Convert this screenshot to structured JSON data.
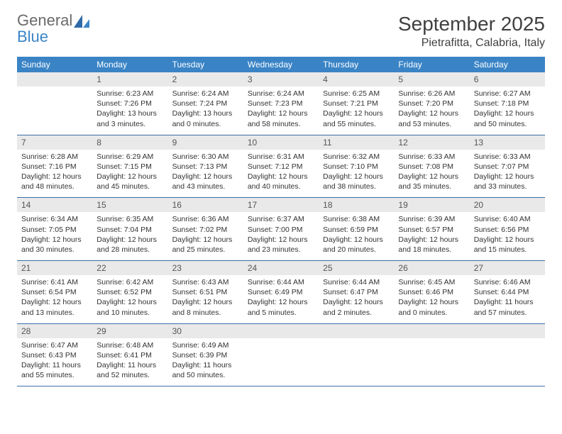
{
  "logo": {
    "line1": "General",
    "line2": "Blue"
  },
  "title": "September 2025",
  "location": "Pietrafitta, Calabria, Italy",
  "colors": {
    "header_bg": "#3a84c6",
    "daynum_bg": "#e9e9e9",
    "week_border": "#3a6fa6",
    "text_dark": "#404040",
    "logo_gray": "#6a6a6a",
    "logo_blue": "#3a84c6"
  },
  "dow": [
    "Sunday",
    "Monday",
    "Tuesday",
    "Wednesday",
    "Thursday",
    "Friday",
    "Saturday"
  ],
  "weeks": [
    [
      {
        "n": "",
        "sr": "",
        "ss": "",
        "dl": ""
      },
      {
        "n": "1",
        "sr": "Sunrise: 6:23 AM",
        "ss": "Sunset: 7:26 PM",
        "dl": "Daylight: 13 hours and 3 minutes."
      },
      {
        "n": "2",
        "sr": "Sunrise: 6:24 AM",
        "ss": "Sunset: 7:24 PM",
        "dl": "Daylight: 13 hours and 0 minutes."
      },
      {
        "n": "3",
        "sr": "Sunrise: 6:24 AM",
        "ss": "Sunset: 7:23 PM",
        "dl": "Daylight: 12 hours and 58 minutes."
      },
      {
        "n": "4",
        "sr": "Sunrise: 6:25 AM",
        "ss": "Sunset: 7:21 PM",
        "dl": "Daylight: 12 hours and 55 minutes."
      },
      {
        "n": "5",
        "sr": "Sunrise: 6:26 AM",
        "ss": "Sunset: 7:20 PM",
        "dl": "Daylight: 12 hours and 53 minutes."
      },
      {
        "n": "6",
        "sr": "Sunrise: 6:27 AM",
        "ss": "Sunset: 7:18 PM",
        "dl": "Daylight: 12 hours and 50 minutes."
      }
    ],
    [
      {
        "n": "7",
        "sr": "Sunrise: 6:28 AM",
        "ss": "Sunset: 7:16 PM",
        "dl": "Daylight: 12 hours and 48 minutes."
      },
      {
        "n": "8",
        "sr": "Sunrise: 6:29 AM",
        "ss": "Sunset: 7:15 PM",
        "dl": "Daylight: 12 hours and 45 minutes."
      },
      {
        "n": "9",
        "sr": "Sunrise: 6:30 AM",
        "ss": "Sunset: 7:13 PM",
        "dl": "Daylight: 12 hours and 43 minutes."
      },
      {
        "n": "10",
        "sr": "Sunrise: 6:31 AM",
        "ss": "Sunset: 7:12 PM",
        "dl": "Daylight: 12 hours and 40 minutes."
      },
      {
        "n": "11",
        "sr": "Sunrise: 6:32 AM",
        "ss": "Sunset: 7:10 PM",
        "dl": "Daylight: 12 hours and 38 minutes."
      },
      {
        "n": "12",
        "sr": "Sunrise: 6:33 AM",
        "ss": "Sunset: 7:08 PM",
        "dl": "Daylight: 12 hours and 35 minutes."
      },
      {
        "n": "13",
        "sr": "Sunrise: 6:33 AM",
        "ss": "Sunset: 7:07 PM",
        "dl": "Daylight: 12 hours and 33 minutes."
      }
    ],
    [
      {
        "n": "14",
        "sr": "Sunrise: 6:34 AM",
        "ss": "Sunset: 7:05 PM",
        "dl": "Daylight: 12 hours and 30 minutes."
      },
      {
        "n": "15",
        "sr": "Sunrise: 6:35 AM",
        "ss": "Sunset: 7:04 PM",
        "dl": "Daylight: 12 hours and 28 minutes."
      },
      {
        "n": "16",
        "sr": "Sunrise: 6:36 AM",
        "ss": "Sunset: 7:02 PM",
        "dl": "Daylight: 12 hours and 25 minutes."
      },
      {
        "n": "17",
        "sr": "Sunrise: 6:37 AM",
        "ss": "Sunset: 7:00 PM",
        "dl": "Daylight: 12 hours and 23 minutes."
      },
      {
        "n": "18",
        "sr": "Sunrise: 6:38 AM",
        "ss": "Sunset: 6:59 PM",
        "dl": "Daylight: 12 hours and 20 minutes."
      },
      {
        "n": "19",
        "sr": "Sunrise: 6:39 AM",
        "ss": "Sunset: 6:57 PM",
        "dl": "Daylight: 12 hours and 18 minutes."
      },
      {
        "n": "20",
        "sr": "Sunrise: 6:40 AM",
        "ss": "Sunset: 6:56 PM",
        "dl": "Daylight: 12 hours and 15 minutes."
      }
    ],
    [
      {
        "n": "21",
        "sr": "Sunrise: 6:41 AM",
        "ss": "Sunset: 6:54 PM",
        "dl": "Daylight: 12 hours and 13 minutes."
      },
      {
        "n": "22",
        "sr": "Sunrise: 6:42 AM",
        "ss": "Sunset: 6:52 PM",
        "dl": "Daylight: 12 hours and 10 minutes."
      },
      {
        "n": "23",
        "sr": "Sunrise: 6:43 AM",
        "ss": "Sunset: 6:51 PM",
        "dl": "Daylight: 12 hours and 8 minutes."
      },
      {
        "n": "24",
        "sr": "Sunrise: 6:44 AM",
        "ss": "Sunset: 6:49 PM",
        "dl": "Daylight: 12 hours and 5 minutes."
      },
      {
        "n": "25",
        "sr": "Sunrise: 6:44 AM",
        "ss": "Sunset: 6:47 PM",
        "dl": "Daylight: 12 hours and 2 minutes."
      },
      {
        "n": "26",
        "sr": "Sunrise: 6:45 AM",
        "ss": "Sunset: 6:46 PM",
        "dl": "Daylight: 12 hours and 0 minutes."
      },
      {
        "n": "27",
        "sr": "Sunrise: 6:46 AM",
        "ss": "Sunset: 6:44 PM",
        "dl": "Daylight: 11 hours and 57 minutes."
      }
    ],
    [
      {
        "n": "28",
        "sr": "Sunrise: 6:47 AM",
        "ss": "Sunset: 6:43 PM",
        "dl": "Daylight: 11 hours and 55 minutes."
      },
      {
        "n": "29",
        "sr": "Sunrise: 6:48 AM",
        "ss": "Sunset: 6:41 PM",
        "dl": "Daylight: 11 hours and 52 minutes."
      },
      {
        "n": "30",
        "sr": "Sunrise: 6:49 AM",
        "ss": "Sunset: 6:39 PM",
        "dl": "Daylight: 11 hours and 50 minutes."
      },
      {
        "n": "",
        "sr": "",
        "ss": "",
        "dl": ""
      },
      {
        "n": "",
        "sr": "",
        "ss": "",
        "dl": ""
      },
      {
        "n": "",
        "sr": "",
        "ss": "",
        "dl": ""
      },
      {
        "n": "",
        "sr": "",
        "ss": "",
        "dl": ""
      }
    ]
  ]
}
